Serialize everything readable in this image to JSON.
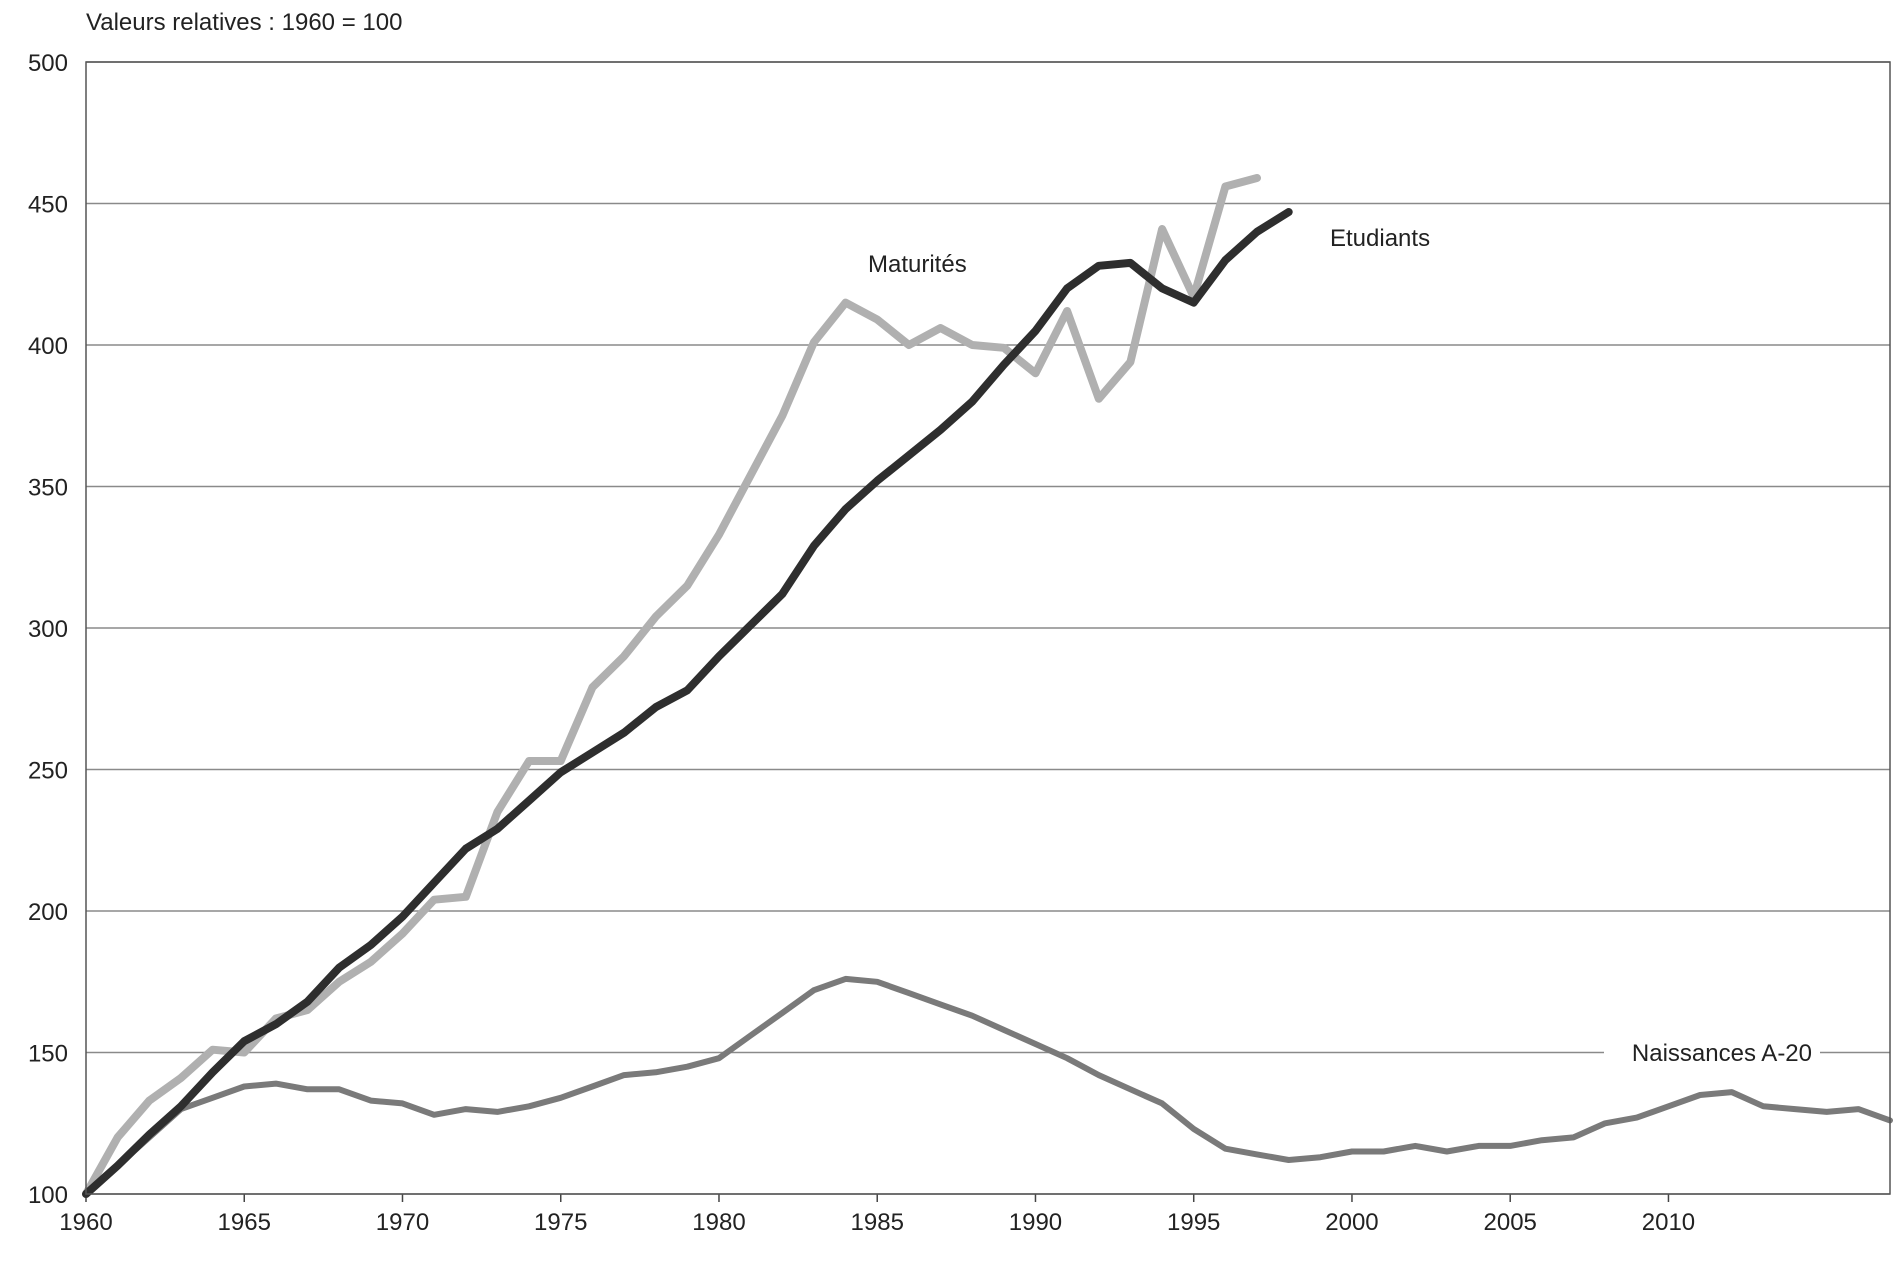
{
  "chart_data": {
    "type": "line",
    "ylabel": "Valeurs relatives : 1960 = 100",
    "xlim": [
      1960,
      2017
    ],
    "ylim": [
      100,
      500
    ],
    "xticks": [
      1960,
      1965,
      1970,
      1975,
      1980,
      1985,
      1990,
      1995,
      2000,
      2005,
      2010
    ],
    "yticks": [
      100,
      150,
      200,
      250,
      300,
      350,
      400,
      450,
      500
    ],
    "grid": "horizontal",
    "series": [
      {
        "name": "Naissances A-20",
        "color": "#7a7a7a",
        "x": [
          1960,
          1961,
          1962,
          1963,
          1964,
          1965,
          1966,
          1967,
          1968,
          1969,
          1970,
          1971,
          1972,
          1973,
          1974,
          1975,
          1976,
          1977,
          1978,
          1979,
          1980,
          1981,
          1982,
          1983,
          1984,
          1985,
          1986,
          1987,
          1988,
          1989,
          1990,
          1991,
          1992,
          1993,
          1994,
          1995,
          1996,
          1997,
          1998,
          1999,
          2000,
          2001,
          2002,
          2003,
          2004,
          2005,
          2006,
          2007,
          2008,
          2009,
          2010,
          2011,
          2012,
          2013,
          2014,
          2015,
          2016,
          2017
        ],
        "values": [
          100,
          110,
          120,
          130,
          134,
          138,
          139,
          137,
          137,
          133,
          132,
          128,
          130,
          129,
          131,
          134,
          138,
          142,
          143,
          145,
          148,
          156,
          164,
          172,
          176,
          175,
          171,
          167,
          163,
          158,
          153,
          148,
          142,
          137,
          132,
          123,
          116,
          114,
          112,
          113,
          115,
          115,
          117,
          115,
          117,
          117,
          119,
          120,
          125,
          127,
          131,
          135,
          136,
          131,
          130,
          129,
          130,
          126
        ]
      },
      {
        "name": "Maturités",
        "color": "#b0b0b0",
        "x": [
          1960,
          1961,
          1962,
          1963,
          1964,
          1965,
          1966,
          1967,
          1968,
          1969,
          1970,
          1971,
          1972,
          1973,
          1974,
          1975,
          1976,
          1977,
          1978,
          1979,
          1980,
          1981,
          1982,
          1983,
          1984,
          1985,
          1986,
          1987,
          1988,
          1989,
          1990,
          1991,
          1992,
          1993,
          1994,
          1995,
          1996,
          1997
        ],
        "values": [
          100,
          120,
          133,
          141,
          151,
          150,
          162,
          165,
          175,
          182,
          192,
          204,
          205,
          235,
          253,
          253,
          279,
          290,
          304,
          315,
          333,
          354,
          375,
          401,
          415,
          409,
          400,
          406,
          400,
          399,
          390,
          412,
          381,
          394,
          441,
          417,
          456,
          459
        ]
      },
      {
        "name": "Etudiants",
        "color": "#2e2e2e",
        "x": [
          1960,
          1961,
          1962,
          1963,
          1964,
          1965,
          1966,
          1967,
          1968,
          1969,
          1970,
          1971,
          1972,
          1973,
          1974,
          1975,
          1976,
          1977,
          1978,
          1979,
          1980,
          1981,
          1982,
          1983,
          1984,
          1985,
          1986,
          1987,
          1988,
          1989,
          1990,
          1991,
          1992,
          1993,
          1994,
          1995,
          1996,
          1997,
          1998
        ],
        "values": [
          100,
          110,
          121,
          131,
          143,
          154,
          160,
          168,
          180,
          188,
          198,
          210,
          222,
          229,
          239,
          249,
          256,
          263,
          272,
          278,
          290,
          301,
          312,
          329,
          342,
          352,
          361,
          370,
          380,
          393,
          405,
          420,
          428,
          429,
          420,
          415,
          430,
          440,
          447
        ]
      }
    ],
    "labels": [
      {
        "series": "Maturités",
        "text": "Maturités"
      },
      {
        "series": "Etudiants",
        "text": "Etudiants"
      },
      {
        "series": "Naissances A-20",
        "text": "Naissances A-20"
      }
    ]
  }
}
